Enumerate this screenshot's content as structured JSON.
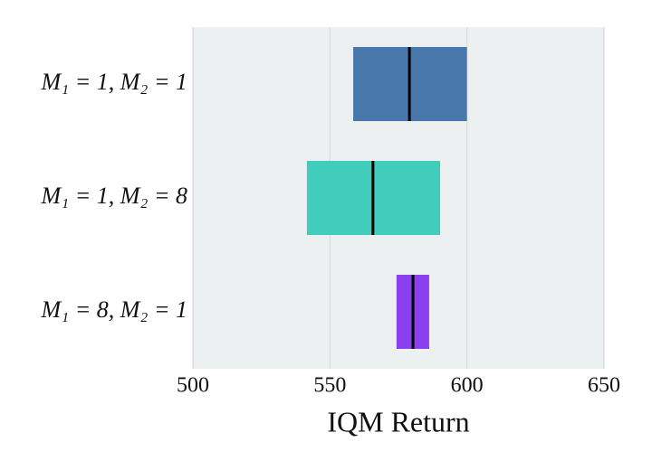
{
  "chart_data": {
    "type": "interval",
    "categories": [
      "M₁ = 1, M₂ = 1",
      "M₁ = 1, M₂ = 8",
      "M₁ = 8, M₂ = 1"
    ],
    "lower": [
      558.5,
      541.6,
      574.3
    ],
    "upper": [
      600,
      590.2,
      586.2
    ],
    "values": [
      579,
      565.7,
      580.3
    ],
    "colors": [
      "#4878ab",
      "#40cdbc",
      "#8b40ef"
    ],
    "xlabel": "IQM Return",
    "xlim": [
      500,
      650
    ],
    "xticks": [
      500,
      550,
      600,
      650
    ],
    "grid": true
  }
}
